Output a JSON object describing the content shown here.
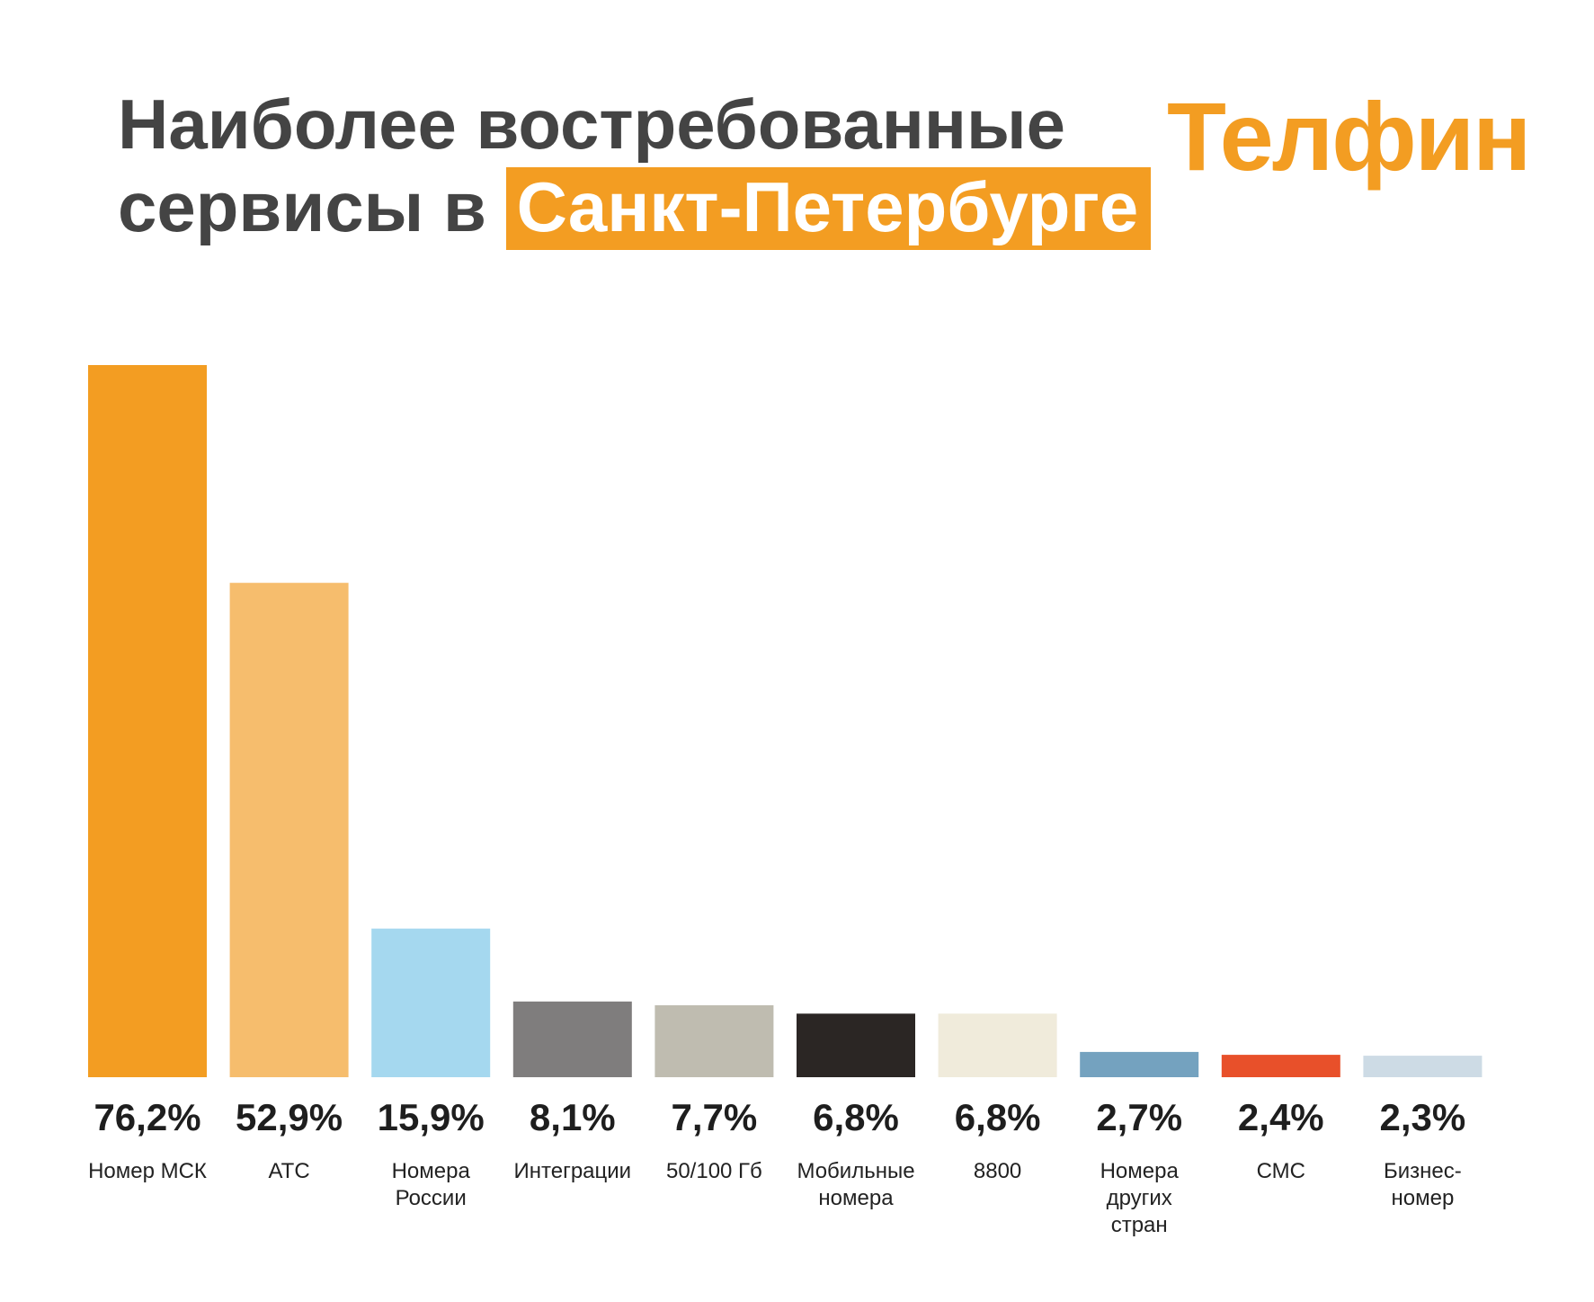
{
  "header": {
    "title_line1": "Наиболее востребованные",
    "title_line2_prefix": "сервисы в",
    "title_highlight": "Санкт-Петербурге"
  },
  "logo": {
    "text": "Телфин"
  },
  "colors": {
    "accent": "#f39d22",
    "title_text": "#444444"
  },
  "chart_data": {
    "type": "bar",
    "categories": [
      [
        "Номер МСК"
      ],
      [
        "АТС"
      ],
      [
        "Номера",
        "России"
      ],
      [
        "Интеграции"
      ],
      [
        "50/100 Гб"
      ],
      [
        "Мобильные",
        "номера"
      ],
      [
        "8800"
      ],
      [
        "Номера",
        "других",
        "стран"
      ],
      [
        "СМС"
      ],
      [
        "Бизнес-",
        "номер"
      ]
    ],
    "values": [
      76.2,
      52.9,
      15.9,
      8.1,
      7.7,
      6.8,
      6.8,
      2.7,
      2.4,
      2.3
    ],
    "value_labels": [
      "76,2%",
      "52,9%",
      "15,9%",
      "8,1%",
      "7,7%",
      "6,8%",
      "6,8%",
      "2,7%",
      "2,4%",
      "2,3%"
    ],
    "bar_colors": [
      "#f39d22",
      "#f6bd6d",
      "#a5d8ef",
      "#7f7d7d",
      "#bfbcb0",
      "#2b2624",
      "#f0ebdb",
      "#74a2bf",
      "#e8502a",
      "#cddbe5"
    ],
    "ylim": [
      0,
      76.2
    ]
  }
}
